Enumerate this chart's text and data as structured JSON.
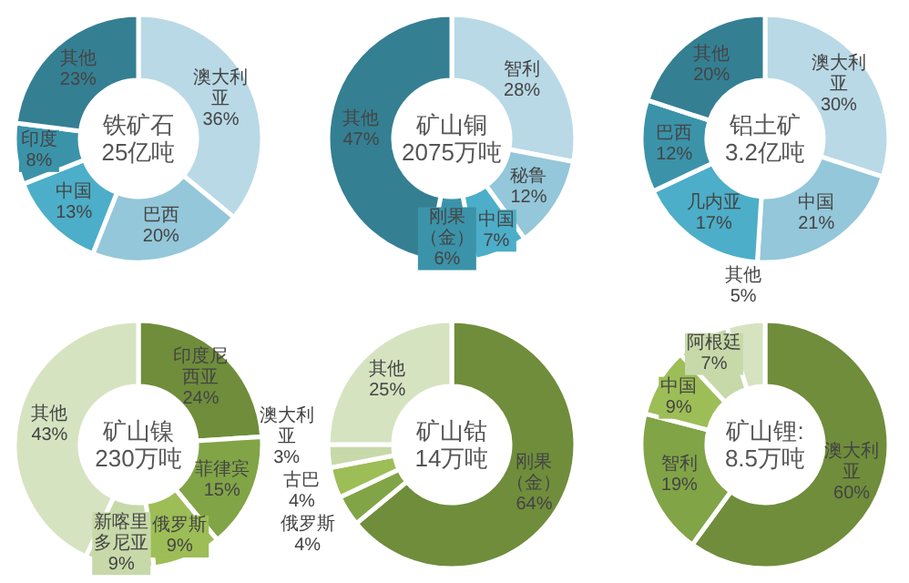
{
  "chart_data": [
    {
      "type": "donut",
      "title": "铁矿石",
      "subtitle": "25亿吨",
      "categories": [
        "澳大利亚",
        "巴西",
        "中国",
        "印度",
        "其他"
      ],
      "values": [
        36,
        20,
        13,
        8,
        23
      ],
      "value_labels": [
        "36%",
        "20%",
        "13%",
        "8%",
        "23%"
      ],
      "colors": [
        "#b9d9e6",
        "#93c7d9",
        "#4caec8",
        "#3b93a9",
        "#357f93"
      ]
    },
    {
      "type": "donut",
      "title": "矿山铜",
      "subtitle": "2075万吨",
      "categories": [
        "智利",
        "秘鲁",
        "中国",
        "刚果（金）",
        "其他"
      ],
      "values": [
        28,
        12,
        7,
        6,
        47
      ],
      "value_labels": [
        "28%",
        "12%",
        "7%",
        "6%",
        "47%"
      ],
      "colors": [
        "#b9d9e6",
        "#93c7d9",
        "#4caec8",
        "#3b93a9",
        "#357f93"
      ]
    },
    {
      "type": "donut",
      "title": "铝土矿",
      "subtitle": "3.2亿吨",
      "categories": [
        "澳大利亚",
        "中国",
        "几内亚",
        "巴西",
        "其他"
      ],
      "values": [
        30,
        21,
        17,
        12,
        20
      ],
      "value_labels": [
        "30%",
        "21%",
        "17%",
        "12%",
        "20%"
      ],
      "colors": [
        "#b9d9e6",
        "#93c7d9",
        "#4caec8",
        "#3b93a9",
        "#357f93"
      ]
    },
    {
      "type": "donut",
      "title": "矿山镍",
      "subtitle": "230万吨",
      "categories": [
        "印度尼西亚",
        "菲律宾",
        "俄罗斯",
        "新喀里多尼亚",
        "其他"
      ],
      "values": [
        24,
        15,
        9,
        9,
        43
      ],
      "value_labels": [
        "24%",
        "15%",
        "9%",
        "9%",
        "43%"
      ],
      "colors": [
        "#6f8d3b",
        "#81a446",
        "#9dbd57",
        "#c7d9a9",
        "#d6e3c1"
      ]
    },
    {
      "type": "donut",
      "title": "矿山钴",
      "subtitle": "14万吨",
      "categories": [
        "刚果（金）",
        "俄罗斯",
        "古巴",
        "澳大利亚",
        "其他"
      ],
      "values": [
        64,
        4,
        4,
        3,
        25
      ],
      "value_labels": [
        "64%",
        "4%",
        "4%",
        "3%",
        "25%"
      ],
      "colors": [
        "#6f8d3b",
        "#81a446",
        "#9dbd57",
        "#c7d9a9",
        "#d6e3c1"
      ]
    },
    {
      "type": "donut",
      "title": "矿山锂:",
      "subtitle": "8.5万吨",
      "categories": [
        "澳大利亚",
        "智利",
        "中国",
        "阿根廷",
        "其他"
      ],
      "values": [
        60,
        19,
        9,
        7,
        5
      ],
      "value_labels": [
        "60%",
        "19%",
        "9%",
        "7%",
        "5%"
      ],
      "colors": [
        "#6f8d3b",
        "#81a446",
        "#9dbd57",
        "#c7d9a9",
        "#d6e3c1"
      ]
    }
  ]
}
